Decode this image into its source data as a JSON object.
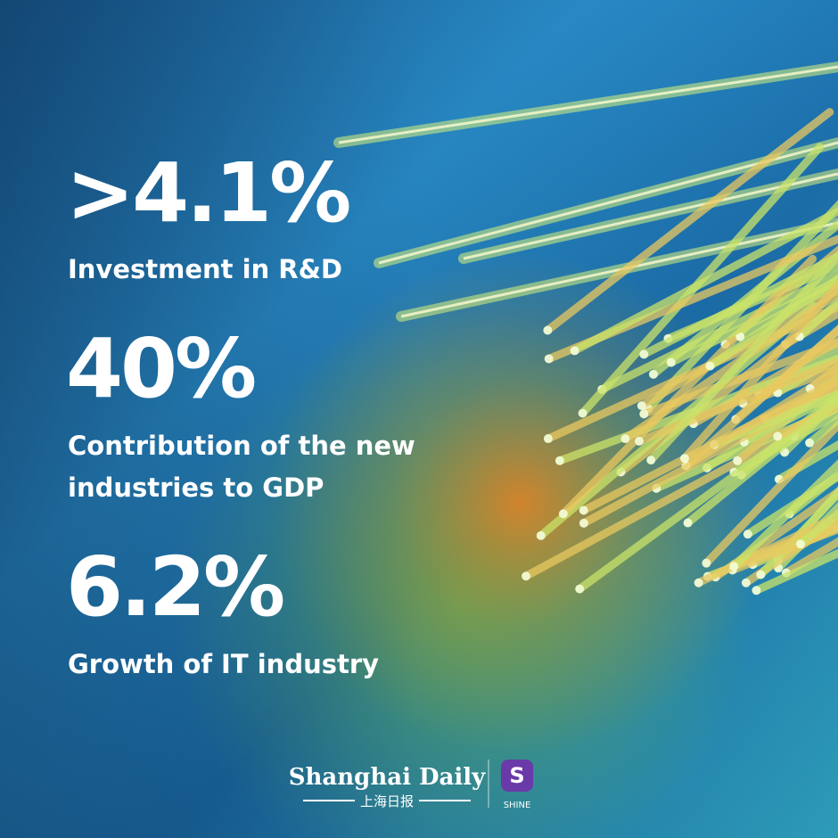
{
  "stats": [
    {
      "figure": ">4.1%",
      "caption": [
        "Investment in R&D"
      ]
    },
    {
      "figure": "40%",
      "caption": [
        "Contribution of the new",
        "industries to GDP"
      ]
    },
    {
      "figure": "6.2%",
      "caption": [
        "Growth of IT industry"
      ]
    }
  ],
  "footer": {
    "brand": "Shanghai Daily",
    "brand_cn": "上海日报",
    "app_icon": "S",
    "app_name": "SHINE"
  }
}
